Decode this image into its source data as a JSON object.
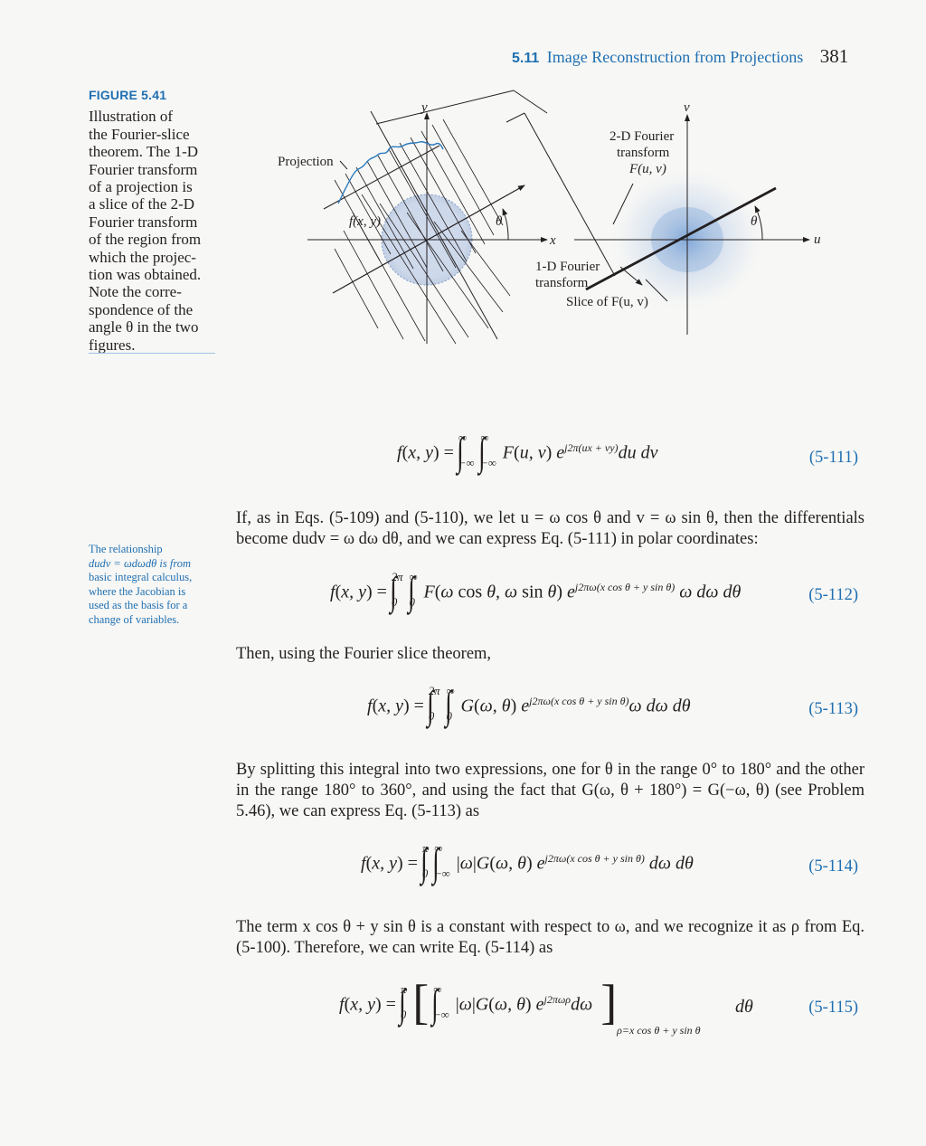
{
  "header": {
    "section": "5.11",
    "title": "Image Reconstruction from Projections",
    "page": "381"
  },
  "figure": {
    "label": "FIGURE 5.41",
    "caption": "Illustration of the Fourier-slice theorem. The 1-D Fourier transform of a projection is a slice of the 2-D Fourier transform of the region from which the projection was obtained. Note the correspondence of the angle θ in the two figures.",
    "caption_lines": [
      "Illustration of",
      "the Fourier-slice",
      "theorem. The 1-D",
      "Fourier transform",
      "of a projection is",
      "a slice of the 2-D",
      "Fourier transform",
      "of the region from",
      "which the projec-",
      "tion was obtained.",
      "Note the corre-",
      "spondence of the",
      "angle θ in the two",
      "figures."
    ],
    "labels": {
      "y": "y",
      "x": "x",
      "v": "v",
      "u": "u",
      "projection": "Projection",
      "fxy": "f(x, y)",
      "theta_left": "θ",
      "theta_right": "θ",
      "ft2d_l1": "2-D Fourier",
      "ft2d_l2": "transform",
      "ft2d_l3": "F(u, v)",
      "ft1d_l1": "1-D Fourier",
      "ft1d_l2": "transform",
      "slice": "Slice of F(u, v)"
    }
  },
  "margin_note": {
    "lines": [
      "The relationship",
      "dudv = ωdωdθ is from",
      "basic integral calculus,",
      "where the Jacobian is",
      "used as the basis for a",
      "change of variables."
    ]
  },
  "paragraphs": {
    "p1": "If, as in Eqs. (5-109) and (5-110), we let u = ω cos θ and v = ω sin θ, then the differentials become dudv = ω dω dθ, and we can express Eq. (5-111) in polar coordinates:",
    "p2": "Then, using the Fourier slice theorem,",
    "p3": "By splitting this integral into two expressions, one for θ in the range 0° to 180° and the other in the range 180° to 360°, and using the fact that G(ω, θ + 180°) = G(−ω, θ) (see Problem 5.46), we can express Eq. (5-113) as",
    "p4": "The term x cos θ + y sin θ is a constant with respect to ω, and we recognize it as ρ from Eq. (5-100). Therefore, we can write Eq. (5-114) as"
  },
  "equations": {
    "e111": {
      "num": "(5-111)"
    },
    "e112": {
      "num": "(5-112)"
    },
    "e113": {
      "num": "(5-113)"
    },
    "e114": {
      "num": "(5-114)"
    },
    "e115": {
      "num": "(5-115)"
    }
  },
  "colors": {
    "accent": "#1f6fb2",
    "text": "#231f20",
    "projection_curve": "#2a7bbf"
  }
}
